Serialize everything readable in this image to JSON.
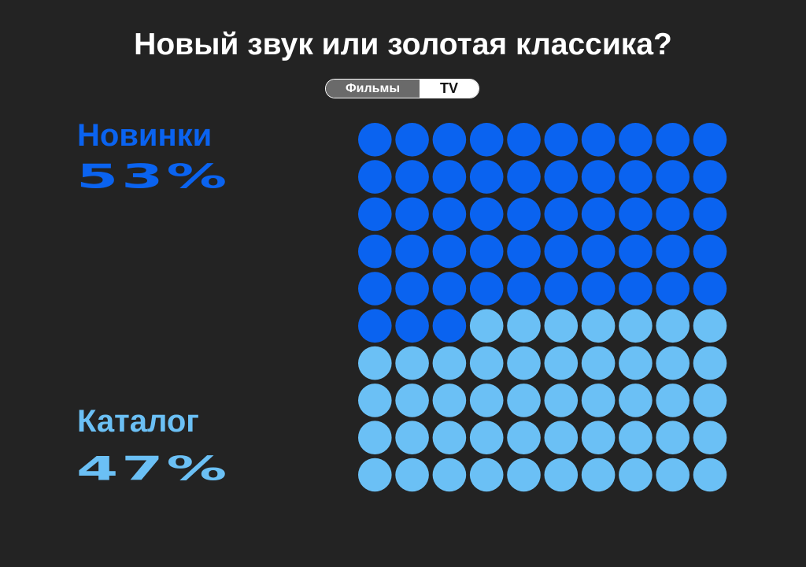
{
  "title": "Новый звук или золотая классика?",
  "toggle": {
    "options": [
      "Фильмы",
      "TV"
    ],
    "selected": "TV"
  },
  "colors": {
    "background": "#232323",
    "new": "#0a63f0",
    "catalog": "#6bc0f5",
    "text": "#ffffff",
    "toggle_inactive": "#6a6a6a"
  },
  "categories": [
    {
      "label": "Новинки",
      "percent_text": "53%"
    },
    {
      "label": "Каталог",
      "percent_text": "47%"
    }
  ],
  "chart_data": {
    "type": "waffle",
    "title": "Новый звук или золотая классика?",
    "grid": {
      "rows": 10,
      "cols": 10
    },
    "categories": [
      "Новинки",
      "Каталог"
    ],
    "values": [
      53,
      47
    ],
    "unit": "%",
    "colors": [
      "#0a63f0",
      "#6bc0f5"
    ]
  }
}
